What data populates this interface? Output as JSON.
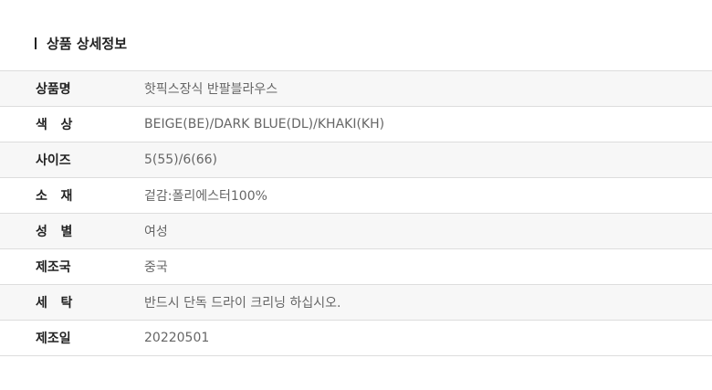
{
  "section_title": "상품 상세정보",
  "rows": [
    {
      "label": "상품명",
      "value": "핫픽스장식 반팔블라우스"
    },
    {
      "label": "색   상",
      "value": "BEIGE(BE)/DARK BLUE(DL)/KHAKI(KH)"
    },
    {
      "label": "사이즈",
      "value": "5(55)/6(66)"
    },
    {
      "label": "소   재",
      "value": "겉감:폴리에스터100%"
    },
    {
      "label": "성   별",
      "value": "여성"
    },
    {
      "label": "제조국",
      "value": "중국"
    },
    {
      "label": "세   탁",
      "value": "반드시 단독 드라이 크리닝 하십시오."
    },
    {
      "label": "제조일",
      "value": "20220501"
    }
  ]
}
